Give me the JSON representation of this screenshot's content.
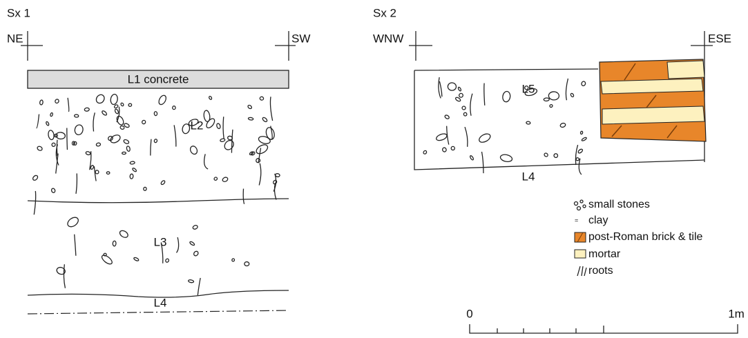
{
  "sections": [
    {
      "title": "Sx 1",
      "left_orientation": "NE",
      "right_orientation": "SW",
      "layers": [
        "L1 concrete",
        "L2",
        "L3",
        "L4"
      ]
    },
    {
      "title": "Sx 2",
      "left_orientation": "WNW",
      "right_orientation": "ESE",
      "layers": [
        "L5",
        "L4"
      ]
    }
  ],
  "legend": [
    "small stones",
    "clay",
    "post-Roman brick & tile",
    "mortar",
    "roots"
  ],
  "scale": {
    "start": "0",
    "end": "1m"
  }
}
